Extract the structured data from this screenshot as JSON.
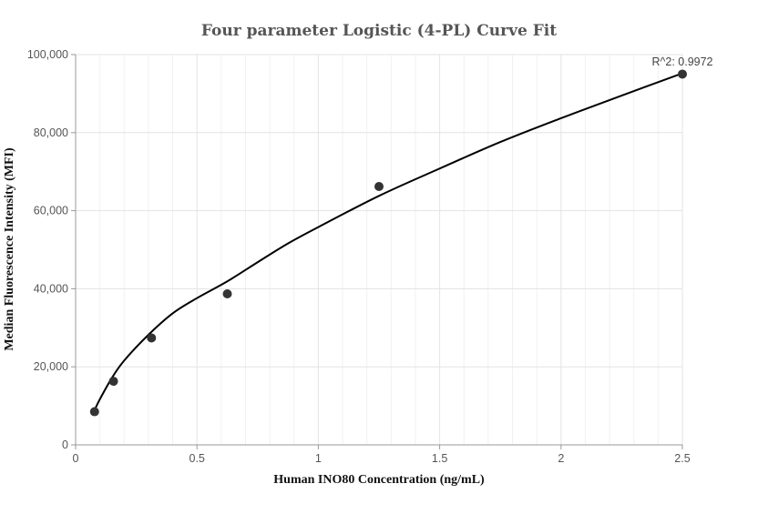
{
  "chart_data": {
    "type": "scatter",
    "title": "Four parameter Logistic (4-PL) Curve Fit",
    "xlabel": "Human INO80 Concentration (ng/mL)",
    "ylabel": "Median Fluorescence Intensity (MFI)",
    "xlim": [
      0,
      2.5
    ],
    "ylim": [
      0,
      100000
    ],
    "x_ticks": [
      0,
      0.5,
      1,
      1.5,
      2,
      2.5
    ],
    "x_tick_labels": [
      "0",
      "0.5",
      "1",
      "1.5",
      "2",
      "2.5"
    ],
    "y_ticks": [
      0,
      20000,
      40000,
      60000,
      80000,
      100000
    ],
    "y_tick_labels": [
      "0",
      "20,000",
      "40,000",
      "60,000",
      "80,000",
      "100,000"
    ],
    "grid": true,
    "legend": "none",
    "annotation": "R^2: 0.9972",
    "series": [
      {
        "kind": "points",
        "color": "#333333",
        "x": [
          0.078,
          0.156,
          0.3125,
          0.625,
          1.25,
          2.5
        ],
        "y": [
          8500,
          16300,
          27400,
          38700,
          66200,
          95000
        ]
      },
      {
        "kind": "fit-curve",
        "color": "#000000",
        "x": [
          0.078,
          0.1,
          0.15,
          0.2,
          0.3,
          0.4,
          0.5,
          0.625,
          0.75,
          0.875,
          1.0,
          1.25,
          1.5,
          1.75,
          2.0,
          2.25,
          2.5
        ],
        "y": [
          8900,
          11700,
          17200,
          21600,
          28200,
          33700,
          37600,
          41900,
          46800,
          51600,
          55800,
          63800,
          70800,
          77600,
          83700,
          89500,
          95200
        ]
      }
    ]
  }
}
